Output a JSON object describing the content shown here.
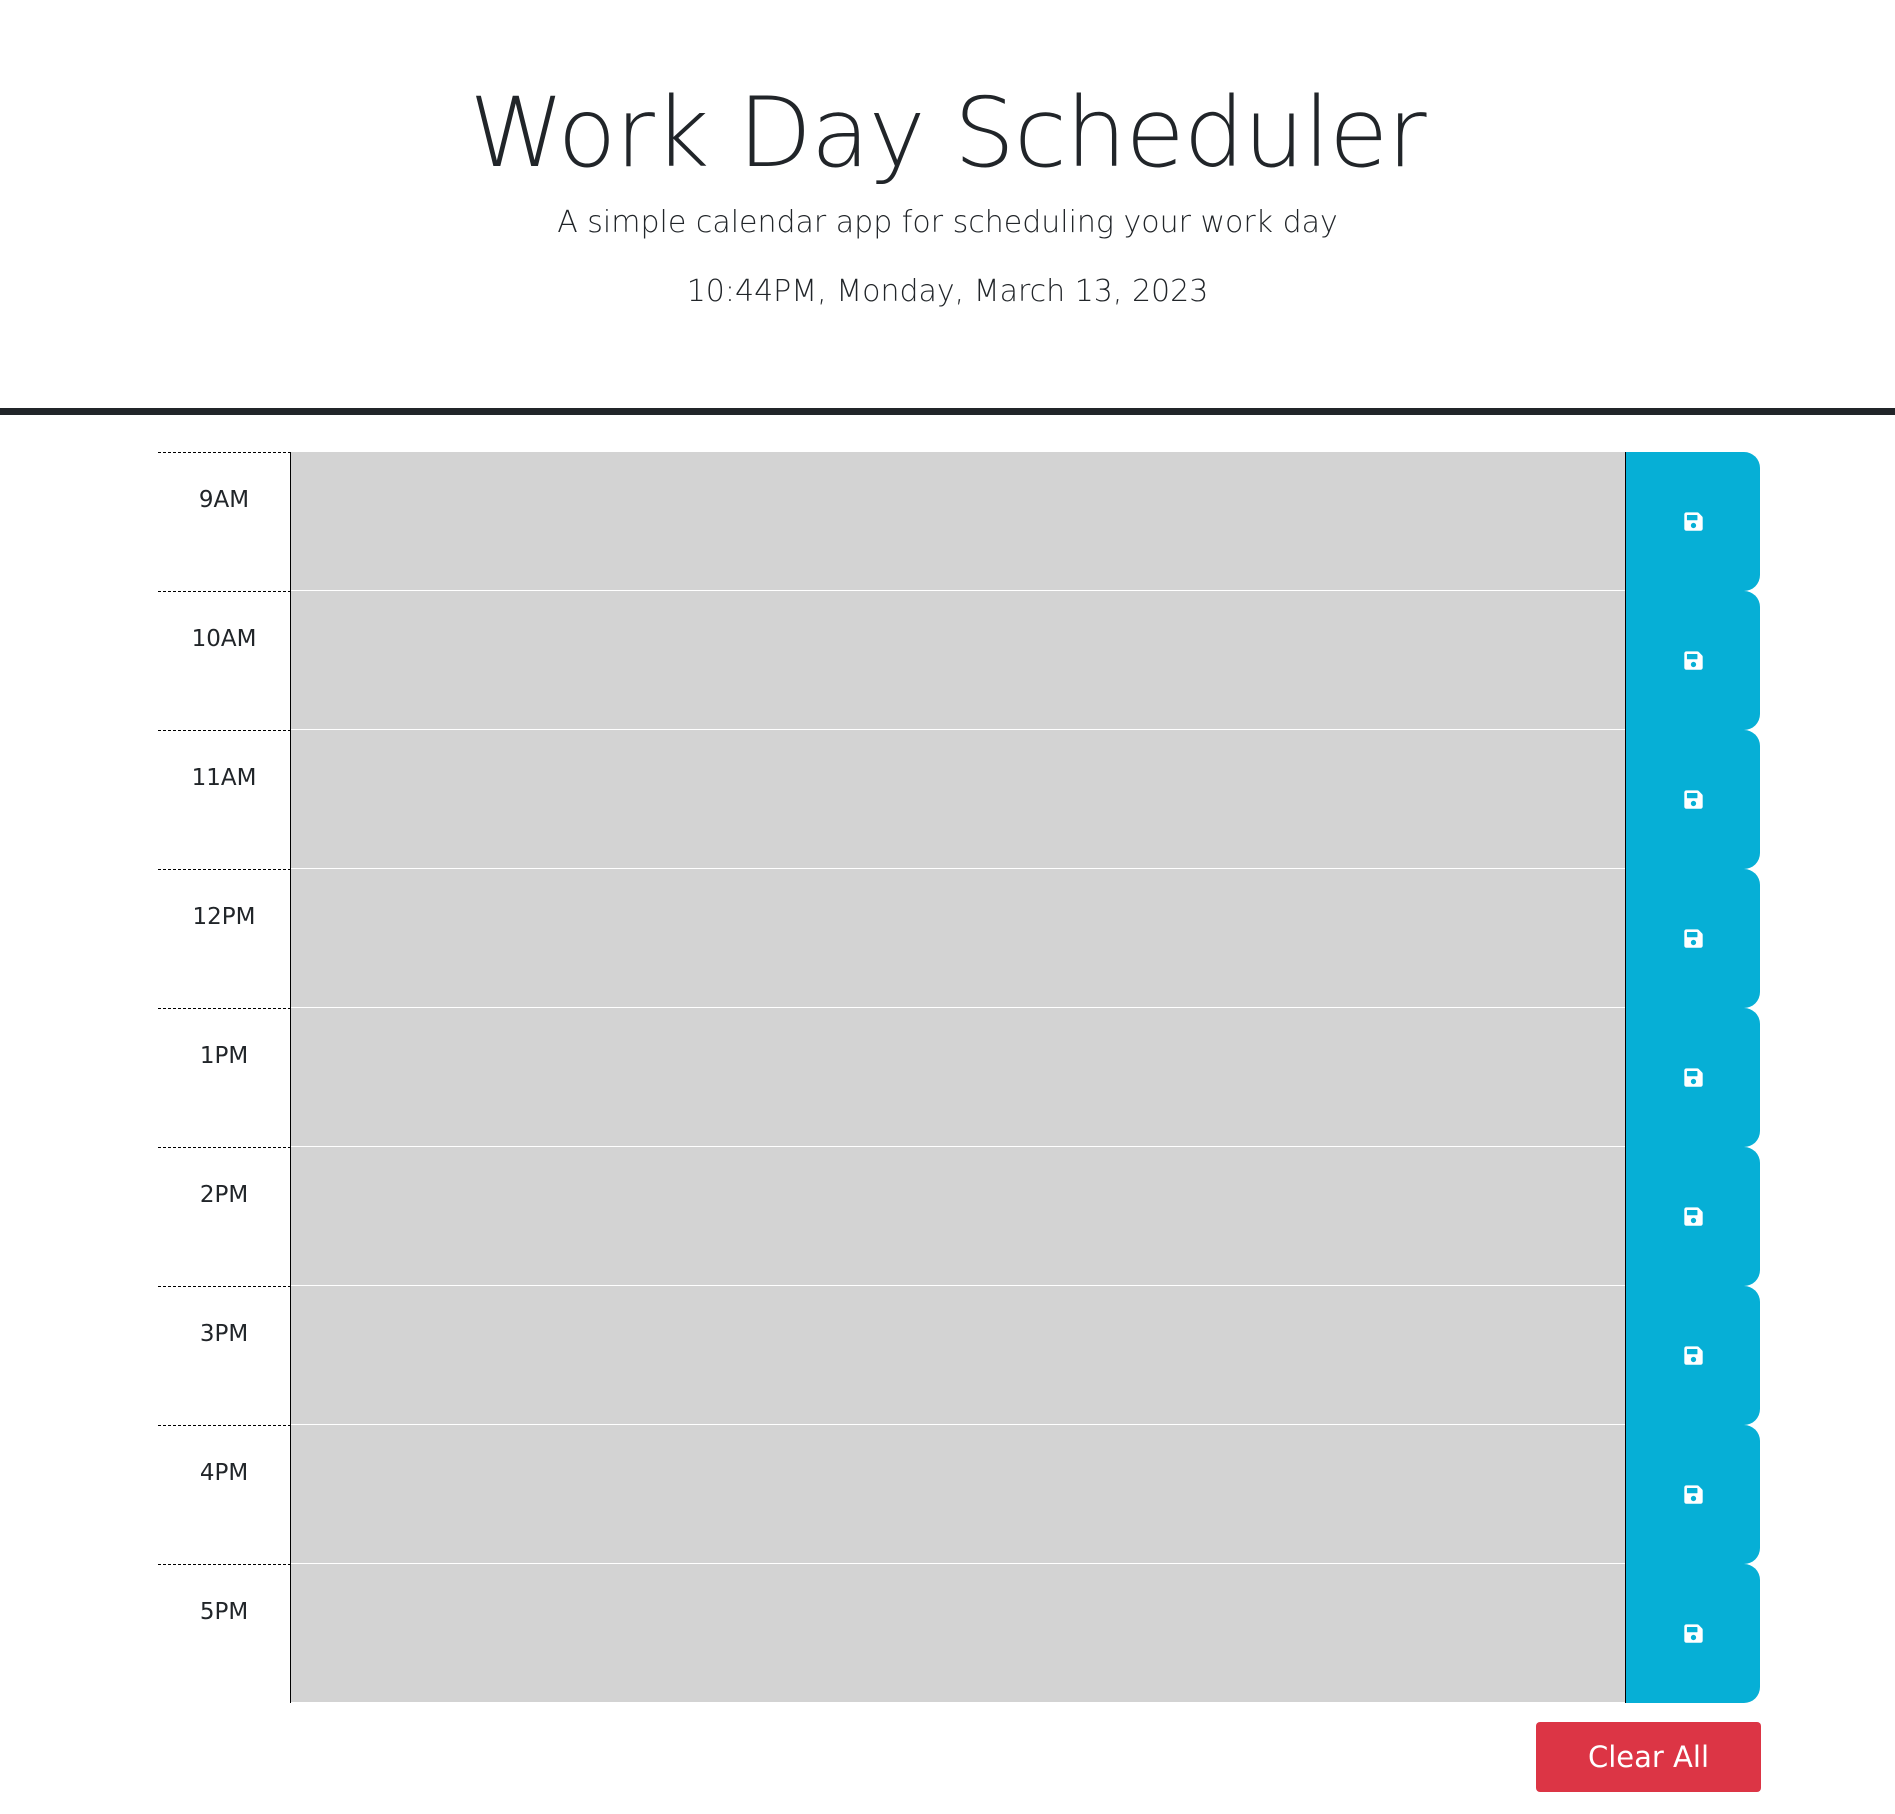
{
  "header": {
    "title": "Work Day Scheduler",
    "subtitle": "A simple calendar app for scheduling your work day",
    "current_datetime": "10:44PM, Monday, March 13, 2023"
  },
  "schedule": {
    "rows": [
      {
        "hour": "9AM",
        "text": ""
      },
      {
        "hour": "10AM",
        "text": ""
      },
      {
        "hour": "11AM",
        "text": ""
      },
      {
        "hour": "12PM",
        "text": ""
      },
      {
        "hour": "1PM",
        "text": ""
      },
      {
        "hour": "2PM",
        "text": ""
      },
      {
        "hour": "3PM",
        "text": ""
      },
      {
        "hour": "4PM",
        "text": ""
      },
      {
        "hour": "5PM",
        "text": ""
      }
    ],
    "save_icon": "save-icon"
  },
  "actions": {
    "clear_label": "Clear All"
  },
  "colors": {
    "past_block": "#d3d3d3",
    "save_button": "#06afd6",
    "clear_button": "#dc3545",
    "header_rule": "#212529"
  }
}
